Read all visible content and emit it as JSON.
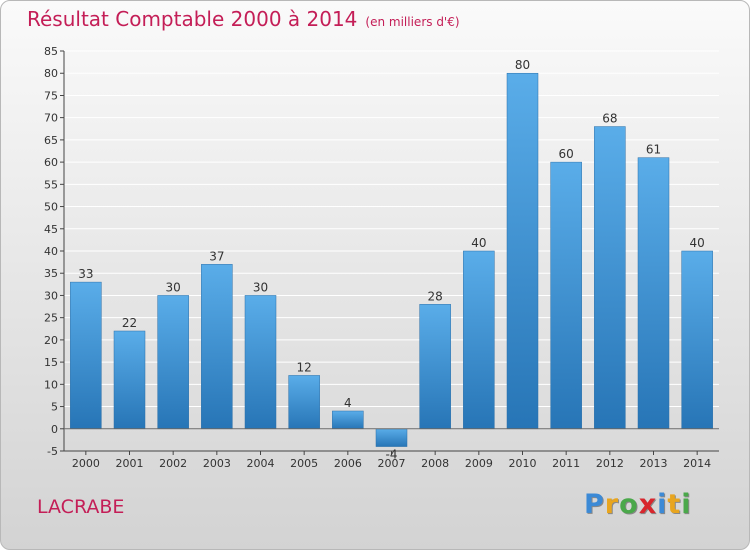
{
  "header": {
    "title": "Résultat Comptable 2000 à 2014",
    "subtitle": "(en milliers d'€)"
  },
  "footer": {
    "commune": "LACRABE",
    "brand_letters": [
      {
        "char": "P",
        "color": "#3c8ad6"
      },
      {
        "char": "r",
        "color": "#e8a51e"
      },
      {
        "char": "o",
        "color": "#4aa84a"
      },
      {
        "char": "x",
        "color": "#d8262d"
      },
      {
        "char": "i",
        "color": "#3c8ad6"
      },
      {
        "char": "t",
        "color": "#e8a51e"
      },
      {
        "char": "i",
        "color": "#4aa84a"
      }
    ]
  },
  "chart_data": {
    "type": "bar",
    "categories": [
      "2000",
      "2001",
      "2002",
      "2003",
      "2004",
      "2005",
      "2006",
      "2007",
      "2008",
      "2009",
      "2010",
      "2011",
      "2012",
      "2013",
      "2014"
    ],
    "values": [
      33,
      22,
      30,
      37,
      30,
      12,
      4,
      -4,
      28,
      40,
      80,
      60,
      68,
      61,
      40
    ],
    "value_labels": [
      "33",
      "22",
      "30",
      "37",
      "30",
      "12",
      "4",
      "-4",
      "28",
      "40",
      "80",
      "60",
      "68",
      "61",
      "40"
    ],
    "ylim": [
      -5,
      85
    ],
    "yticks": [
      -5,
      0,
      5,
      10,
      15,
      20,
      25,
      30,
      35,
      40,
      45,
      50,
      55,
      60,
      65,
      70,
      75,
      80,
      85
    ],
    "grid": true,
    "colors": {
      "bar_top": "#5aade9",
      "bar_bottom": "#2775b6",
      "grid": "#ffffff",
      "axis": "#444444"
    }
  }
}
